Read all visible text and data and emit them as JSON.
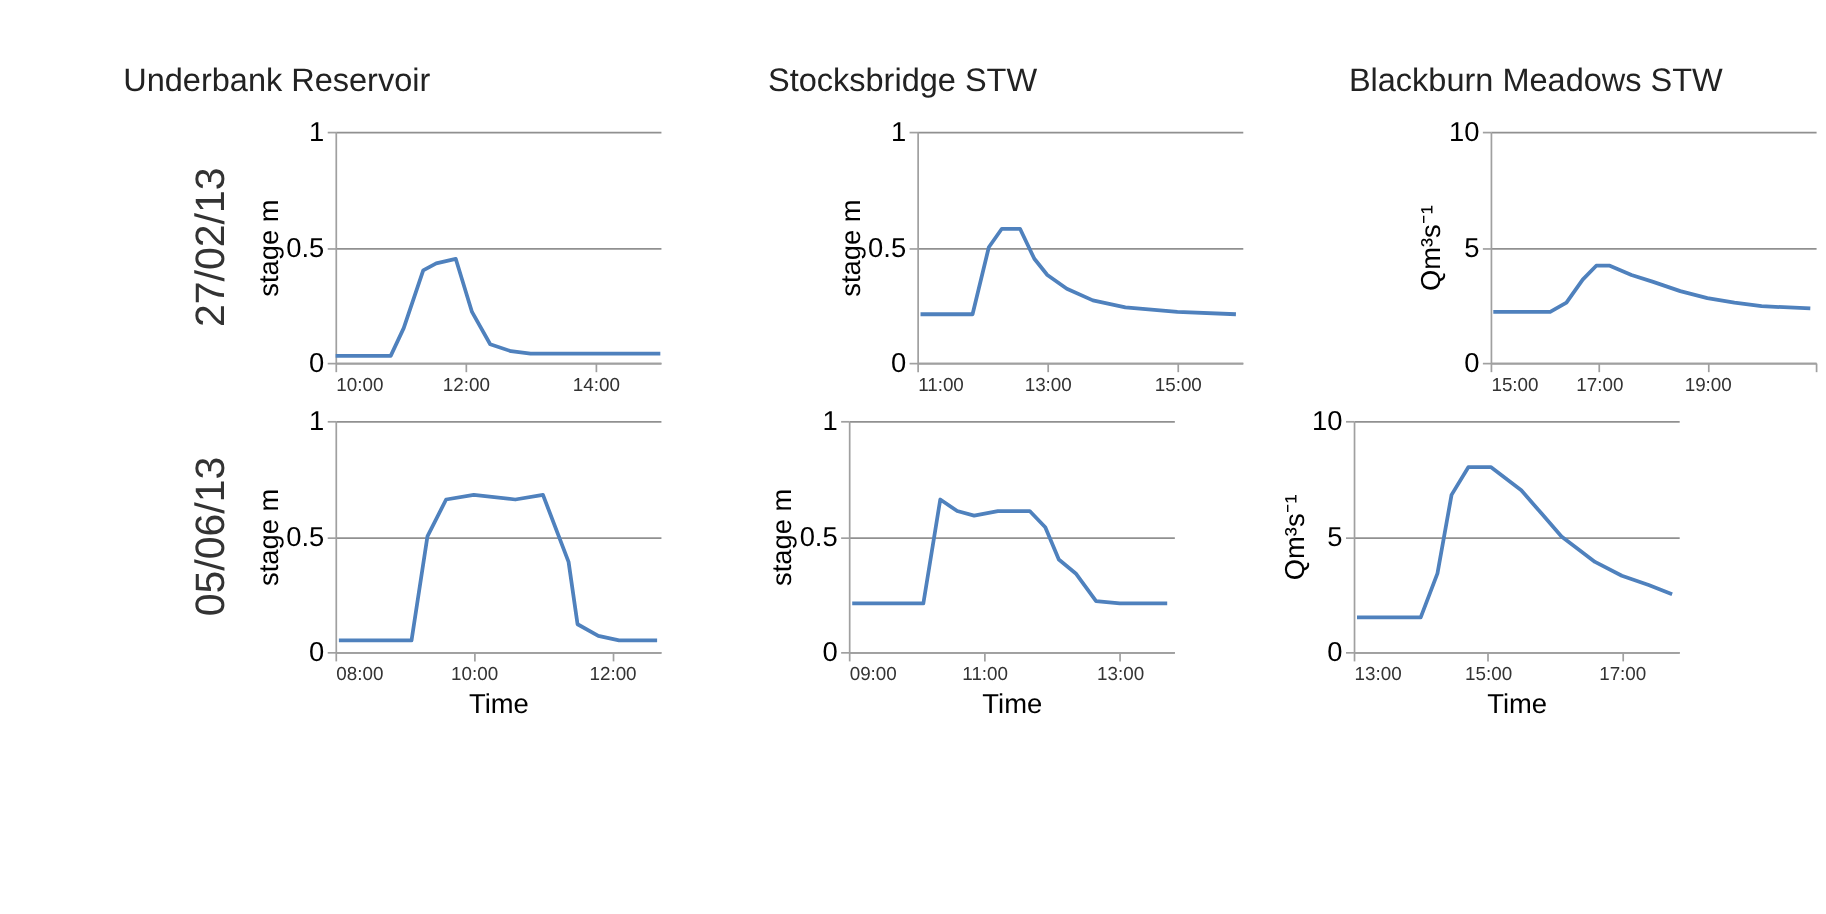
{
  "chart_data": [
    {
      "type": "line",
      "title": "Underbank Reservoir",
      "ylabel": "stage m",
      "annotations": [
        "27/02/13"
      ],
      "grid": "y",
      "marker": "none",
      "line_style": "solid",
      "xlim": [
        10,
        15
      ],
      "xticks": [
        {
          "value": 10,
          "label": "10:00"
        },
        {
          "value": 12,
          "label": "12:00"
        },
        {
          "value": 14,
          "label": "14:00"
        }
      ],
      "ylim": [
        0,
        1
      ],
      "yticks": [
        0,
        0.5,
        1
      ],
      "series": [
        {
          "color": "#4f81bd",
          "x": [
            10.0,
            10.85,
            11.05,
            11.35,
            11.55,
            11.85,
            12.1,
            12.38,
            12.7,
            13.0,
            15.0
          ],
          "values": [
            0.03,
            0.03,
            0.15,
            0.4,
            0.43,
            0.45,
            0.22,
            0.08,
            0.05,
            0.04,
            0.04
          ]
        }
      ]
    },
    {
      "type": "line",
      "title": "Stocksbridge STW",
      "ylabel": "stage m",
      "grid": "y",
      "marker": "none",
      "line_style": "solid",
      "xlim": [
        11,
        16
      ],
      "xticks": [
        {
          "value": 11,
          "label": "11:00"
        },
        {
          "value": 13,
          "label": "13:00"
        },
        {
          "value": 15,
          "label": "15:00"
        }
      ],
      "ylim": [
        0,
        1
      ],
      "yticks": [
        0,
        0.5,
        1
      ],
      "series": [
        {
          "color": "#4f81bd",
          "x": [
            11.05,
            11.85,
            12.1,
            12.3,
            12.58,
            12.8,
            13.0,
            13.3,
            13.7,
            14.2,
            15.0,
            15.9
          ],
          "values": [
            0.21,
            0.21,
            0.5,
            0.58,
            0.58,
            0.45,
            0.38,
            0.32,
            0.27,
            0.24,
            0.22,
            0.21
          ]
        }
      ]
    },
    {
      "type": "line",
      "title": "Blackburn Meadows STW",
      "ylabel": "Qm³s⁻¹",
      "grid": "y",
      "marker": "none",
      "line_style": "solid",
      "xlim": [
        15,
        21
      ],
      "xticks": [
        {
          "value": 15,
          "label": "15:00"
        },
        {
          "value": 17,
          "label": "17:00"
        },
        {
          "value": 19,
          "label": "19:00"
        },
        {
          "value": 21,
          "label": null
        }
      ],
      "ylim": [
        0,
        10
      ],
      "yticks": [
        0,
        5,
        10
      ],
      "series": [
        {
          "color": "#4f81bd",
          "x": [
            15.05,
            16.1,
            16.4,
            16.7,
            16.95,
            17.2,
            17.6,
            18.0,
            18.5,
            19.0,
            19.5,
            20.0,
            20.9
          ],
          "values": [
            2.2,
            2.2,
            2.6,
            3.6,
            4.2,
            4.2,
            3.8,
            3.5,
            3.1,
            2.8,
            2.6,
            2.45,
            2.35
          ]
        }
      ]
    },
    {
      "type": "line",
      "xlabel": "Time",
      "ylabel": "stage m",
      "annotations": [
        "05/06/13"
      ],
      "grid": "y",
      "marker": "none",
      "line_style": "solid",
      "xlim": [
        8,
        12.7
      ],
      "xticks": [
        {
          "value": 8,
          "label": "08:00"
        },
        {
          "value": 10,
          "label": "10:00"
        },
        {
          "value": 12,
          "label": "12:00"
        }
      ],
      "ylim": [
        0,
        1
      ],
      "yticks": [
        0,
        0.5,
        1
      ],
      "series": [
        {
          "color": "#4f81bd",
          "x": [
            8.05,
            9.1,
            9.33,
            9.6,
            10.0,
            10.6,
            11.0,
            11.37,
            11.5,
            11.8,
            12.1,
            12.65
          ],
          "values": [
            0.05,
            0.05,
            0.5,
            0.66,
            0.68,
            0.66,
            0.68,
            0.39,
            0.12,
            0.07,
            0.05,
            0.05
          ]
        }
      ]
    },
    {
      "type": "line",
      "xlabel": "Time",
      "ylabel": "stage m",
      "grid": "y",
      "marker": "none",
      "line_style": "solid",
      "xlim": [
        9,
        13.8
      ],
      "xticks": [
        {
          "value": 9,
          "label": "09:00"
        },
        {
          "value": 11,
          "label": "11:00"
        },
        {
          "value": 13,
          "label": "13:00"
        }
      ],
      "ylim": [
        0,
        1
      ],
      "yticks": [
        0,
        0.5,
        1
      ],
      "series": [
        {
          "color": "#4f81bd",
          "x": [
            9.05,
            10.1,
            10.35,
            10.6,
            10.85,
            11.2,
            11.67,
            11.9,
            12.1,
            12.35,
            12.65,
            13.0,
            13.7
          ],
          "values": [
            0.21,
            0.21,
            0.66,
            0.61,
            0.59,
            0.61,
            0.61,
            0.54,
            0.4,
            0.34,
            0.22,
            0.21,
            0.21
          ]
        }
      ]
    },
    {
      "type": "line",
      "xlabel": "Time",
      "ylabel": "Qm³s⁻¹",
      "grid": "y",
      "marker": "none",
      "line_style": "solid",
      "xlim": [
        13,
        17.85
      ],
      "xticks": [
        {
          "value": 13,
          "label": "13:00"
        },
        {
          "value": 15,
          "label": "15:00"
        },
        {
          "value": 17,
          "label": "17:00"
        }
      ],
      "ylim": [
        0,
        10
      ],
      "yticks": [
        0,
        5,
        10
      ],
      "series": [
        {
          "color": "#4f81bd",
          "x": [
            13.05,
            14.0,
            14.25,
            14.46,
            14.71,
            15.05,
            15.5,
            15.8,
            16.1,
            16.6,
            17.0,
            17.4,
            17.75
          ],
          "values": [
            1.5,
            1.5,
            3.4,
            6.8,
            8.0,
            8.0,
            7.0,
            6.0,
            5.0,
            3.9,
            3.3,
            2.9,
            2.5
          ]
        }
      ]
    }
  ]
}
